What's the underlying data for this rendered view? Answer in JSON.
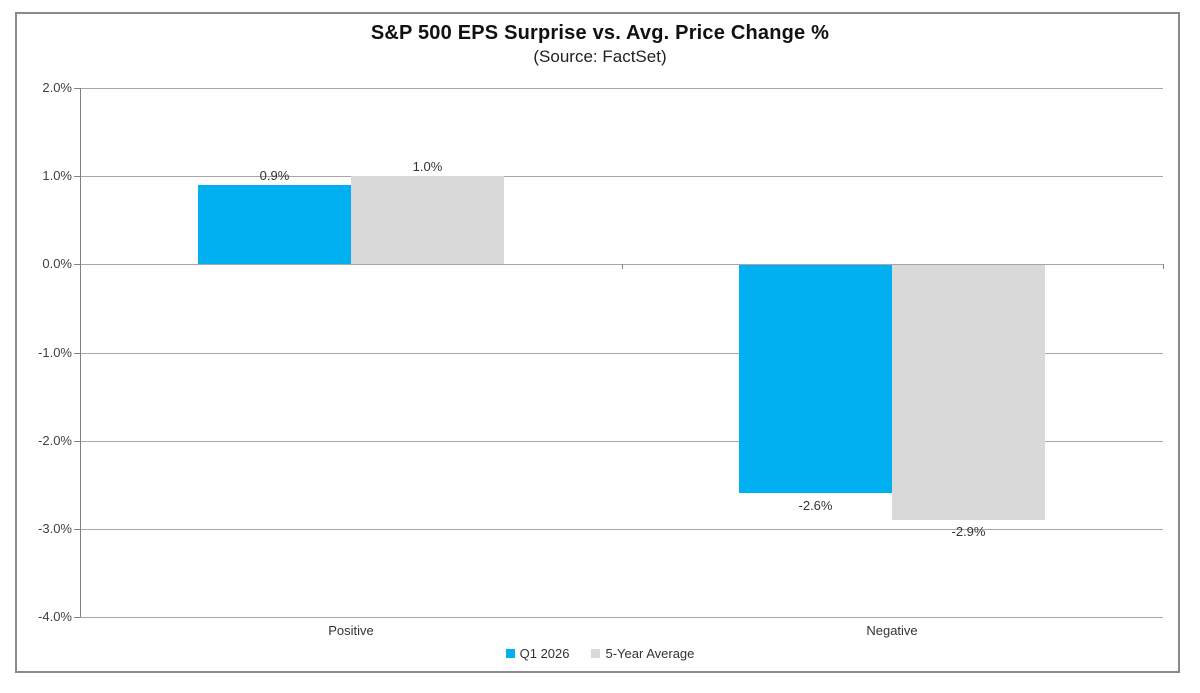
{
  "chart_data": {
    "type": "bar",
    "title": "S&P 500 EPS Surprise vs. Avg. Price Change %",
    "subtitle": "(Source: FactSet)",
    "categories": [
      "Positive",
      "Negative"
    ],
    "series": [
      {
        "name": "Q1 2026",
        "color": "#00B0F0",
        "values": [
          0.9,
          -2.6
        ],
        "labels": [
          "0.9%",
          "-2.6%"
        ]
      },
      {
        "name": "5-Year Average",
        "color": "#D9D9D9",
        "values": [
          1.0,
          -2.9
        ],
        "labels": [
          "1.0%",
          "-2.9%"
        ]
      }
    ],
    "y_axis": {
      "max": 2.0,
      "min": -4.0,
      "step": 1.0,
      "tick_labels": [
        "2.0%",
        "1.0%",
        "0.0%",
        "-1.0%",
        "-2.0%",
        "-3.0%",
        "-4.0%"
      ]
    },
    "xlabel": "",
    "ylabel": "",
    "grid": true,
    "legend_position": "bottom",
    "colors": {
      "accent_blue": "#00B0F0",
      "neutral_gray": "#D9D9D9",
      "gridline": "#a6a6a6",
      "axis": "#808080"
    }
  }
}
